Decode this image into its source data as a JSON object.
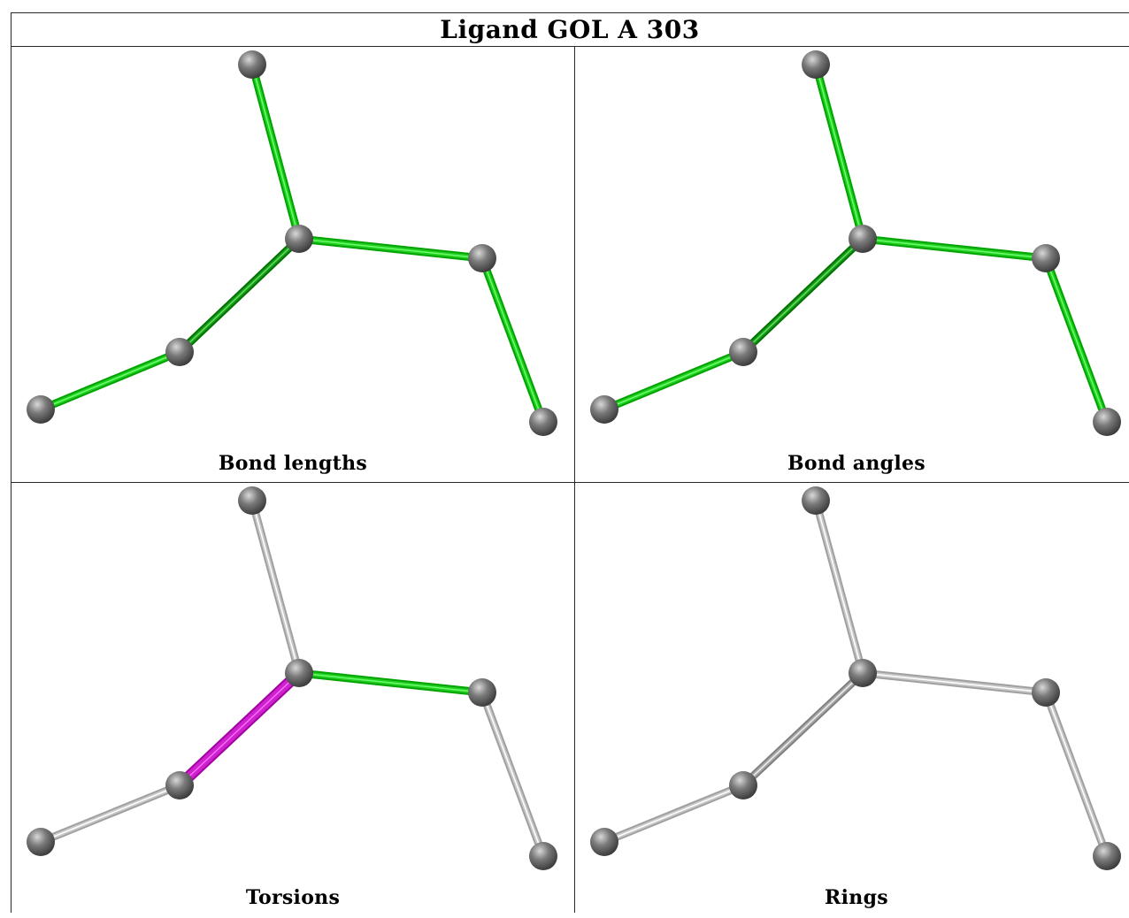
{
  "title": "Ligand GOL A 303",
  "panels": [
    {
      "caption": "Bond lengths",
      "bond_colors": [
        "#22cc22",
        "#22cc22",
        "#1a9a1a",
        "#22cc22",
        "#22cc22",
        "#22cc22"
      ]
    },
    {
      "caption": "Bond angles",
      "bond_colors": [
        "#22cc22",
        "#22cc22",
        "#1a9a1a",
        "#22cc22",
        "#22cc22",
        "#22cc22"
      ]
    },
    {
      "caption": "Torsions",
      "bond_colors": [
        "#c8c8c8",
        "#22cc22",
        "#cc22cc",
        "#c8c8c8",
        "#c8c8c8",
        "#c8c8c8"
      ]
    },
    {
      "caption": "Rings",
      "bond_colors": [
        "#c8c8c8",
        "#c8c8c8",
        "#a8a8a8",
        "#c8c8c8",
        "#c8c8c8",
        "#c8c8c8"
      ]
    }
  ],
  "colors": {
    "atom": "#7a7a7a",
    "atom_highlight": "#d8d8d8",
    "border": "#2a2a2a"
  }
}
